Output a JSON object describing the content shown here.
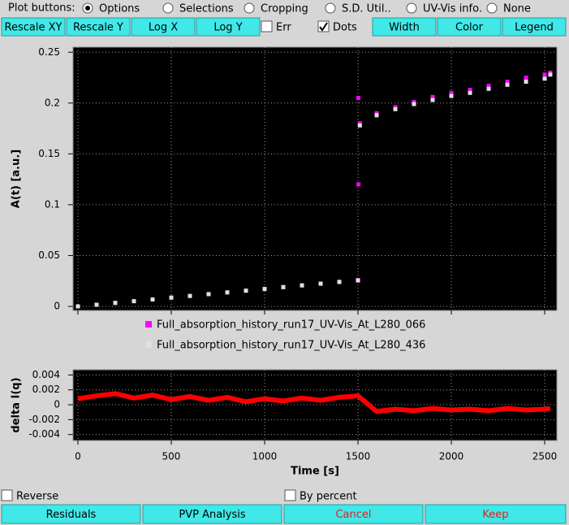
{
  "toolbar": {
    "label": "Plot buttons:",
    "radios": [
      {
        "label": "Options",
        "selected": true
      },
      {
        "label": "Selections",
        "selected": false
      },
      {
        "label": "Cropping",
        "selected": false
      },
      {
        "label": "S.D. Util..",
        "selected": false
      },
      {
        "label": "UV-Vis info.",
        "selected": false
      },
      {
        "label": "None",
        "selected": false
      }
    ],
    "buttons": [
      "Rescale XY",
      "Rescale Y",
      "Log X",
      "Log Y"
    ],
    "checkboxes": [
      {
        "label": "Err",
        "checked": false
      },
      {
        "label": "Dots",
        "checked": true
      }
    ],
    "buttons2": [
      "Width",
      "Color",
      "Legend"
    ]
  },
  "charts": [
    {
      "type": "scatter",
      "ylabel": "A(t) [a.u.]",
      "xlim": [
        -26,
        2565
      ],
      "ylim": [
        -0.004,
        0.255
      ],
      "yticks": [
        0,
        0.05,
        0.1,
        0.15,
        0.2,
        0.25
      ],
      "grid": true,
      "series": [
        {
          "name": "Full_absorption_history_run17_UV-Vis_At_L280_066",
          "color": "#ff00ff",
          "x": [
            0,
            100,
            200,
            300,
            400,
            500,
            600,
            700,
            800,
            900,
            1000,
            1100,
            1200,
            1300,
            1400,
            1500,
            1502,
            1503,
            1510,
            1600,
            1700,
            1800,
            1900,
            2000,
            2100,
            2200,
            2300,
            2400,
            2500,
            2530
          ],
          "values": [
            0,
            0.0017,
            0.0035,
            0.0052,
            0.0069,
            0.0087,
            0.0104,
            0.0121,
            0.0139,
            0.0156,
            0.0173,
            0.0191,
            0.0208,
            0.0225,
            0.0243,
            0.026,
            0.205,
            0.12,
            0.18,
            0.19,
            0.196,
            0.201,
            0.206,
            0.21,
            0.213,
            0.217,
            0.221,
            0.225,
            0.228,
            0.23
          ]
        },
        {
          "name": "Full_absorption_history_run17_UV-Vis_At_L280_436",
          "color": "#e0e0e0",
          "x": [
            0,
            100,
            200,
            300,
            400,
            500,
            600,
            700,
            800,
            900,
            1000,
            1100,
            1200,
            1300,
            1400,
            1500,
            1510,
            1600,
            1700,
            1800,
            1900,
            2000,
            2100,
            2200,
            2300,
            2400,
            2500,
            2530
          ],
          "values": [
            0,
            0.0016,
            0.0034,
            0.0051,
            0.0068,
            0.0086,
            0.0102,
            0.012,
            0.0137,
            0.0154,
            0.0171,
            0.0189,
            0.0206,
            0.0223,
            0.024,
            0.0255,
            0.178,
            0.188,
            0.194,
            0.199,
            0.203,
            0.207,
            0.21,
            0.214,
            0.218,
            0.221,
            0.224,
            0.228
          ]
        }
      ]
    },
    {
      "type": "line",
      "ylabel": "delta I(q)",
      "xlabel": "Time [s]",
      "xlim": [
        -26,
        2565
      ],
      "xticks": [
        0,
        500,
        1000,
        1500,
        2000,
        2500
      ],
      "ylim": [
        -0.0048,
        0.0047
      ],
      "yticks": [
        -0.004,
        -0.002,
        0,
        0.002,
        0.004
      ],
      "grid": true,
      "series": [
        {
          "color": "#ff0000",
          "x": [
            0,
            100,
            200,
            300,
            400,
            500,
            600,
            700,
            800,
            900,
            1000,
            1100,
            1200,
            1300,
            1400,
            1500,
            1600,
            1700,
            1800,
            1900,
            2000,
            2100,
            2200,
            2300,
            2400,
            2500,
            2530
          ],
          "values": [
            0.0008,
            0.0012,
            0.0015,
            0.0009,
            0.0013,
            0.0007,
            0.0011,
            0.0006,
            0.001,
            0.0004,
            0.0008,
            0.0005,
            0.0009,
            0.0006,
            0.001,
            0.0012,
            -0.0009,
            -0.0006,
            -0.0008,
            -0.0005,
            -0.0007,
            -0.0006,
            -0.0008,
            -0.0005,
            -0.0007,
            -0.0006,
            -0.0005
          ]
        }
      ]
    }
  ],
  "footer": {
    "checkboxes": [
      {
        "label": "Reverse",
        "checked": false
      },
      {
        "label": "By percent",
        "checked": false
      }
    ],
    "buttons": [
      "Residuals",
      "PVP Analysis",
      "Cancel",
      "Keep"
    ]
  }
}
